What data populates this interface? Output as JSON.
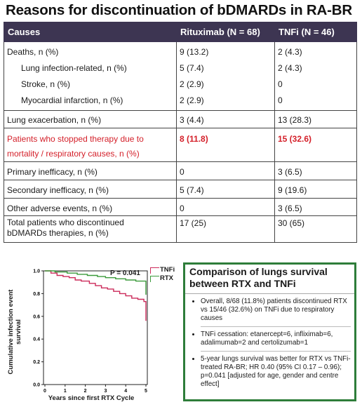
{
  "title": "Reasons for discontinuation of bDMARDs in RA-BR",
  "table": {
    "headers": [
      "Causes",
      "Rituximab (N = 68)",
      "TNFi (N = 46)"
    ],
    "rows": [
      {
        "cause": "Deaths, n (%)",
        "rtx": "9 (13.2)",
        "tnfi": "2 (4.3)"
      },
      {
        "cause": "Lung infection-related, n (%)",
        "rtx": "5 (7.4)",
        "tnfi": "2 (4.3)"
      },
      {
        "cause": "Stroke, n (%)",
        "rtx": "2 (2.9)",
        "tnfi": "0"
      },
      {
        "cause": "Myocardial infarction, n (%)",
        "rtx": "2 (2.9)",
        "tnfi": "0"
      },
      {
        "cause": "Lung exacerbation, n (%)",
        "rtx": "3 (4.4)",
        "tnfi": "13 (28.3)"
      },
      {
        "cause_line1": "Patients who stopped therapy due to",
        "cause_line2": "mortality / respiratory causes, n (%)",
        "rtx": "8 (11.8)",
        "tnfi": "15 (32.6)"
      },
      {
        "cause": "Primary inefficacy, n (%)",
        "rtx": "0",
        "tnfi": "3 (6.5)"
      },
      {
        "cause": "Secondary inefficacy, n (%)",
        "rtx": "5 (7.4)",
        "tnfi": "9 (19.6)"
      },
      {
        "cause": "Other adverse events, n (%)",
        "rtx": "0",
        "tnfi": "3 (6.5)"
      },
      {
        "cause_line1": "Total patients who discontinued",
        "cause_line2": "bDMARDs therapies, n (%)",
        "rtx": "17 (25)",
        "tnfi": "30 (65)"
      }
    ]
  },
  "highlight_color": "#d4202a",
  "header_color": "#3d3552",
  "chart_data": {
    "type": "line",
    "ylabel": "Cumulative infection event survival",
    "xlabel": "Years since first RTX Cycle",
    "annotation": "P = 0.041",
    "xlim": [
      0,
      5
    ],
    "ylim": [
      0,
      1.0
    ],
    "x_ticks": [
      "0",
      "1",
      "2",
      "3",
      "4",
      "5"
    ],
    "y_ticks": [
      "0.0",
      "0.2",
      "0.4",
      "0.6",
      "0.8",
      "1.0"
    ],
    "series": [
      {
        "name": "TNFi",
        "color": "#cc2a5a",
        "x": [
          0,
          0.3,
          0.3,
          0.6,
          0.6,
          0.9,
          0.9,
          1.2,
          1.2,
          1.5,
          1.5,
          1.8,
          1.8,
          2.2,
          2.2,
          2.5,
          2.5,
          2.8,
          2.8,
          3.1,
          3.1,
          3.4,
          3.4,
          3.7,
          3.7,
          4.0,
          4.0,
          4.3,
          4.3,
          4.6,
          4.6,
          4.9,
          4.9,
          5.0,
          5.0
        ],
        "y": [
          1.0,
          1.0,
          0.98,
          0.98,
          0.96,
          0.96,
          0.95,
          0.95,
          0.94,
          0.94,
          0.92,
          0.92,
          0.91,
          0.91,
          0.89,
          0.89,
          0.87,
          0.87,
          0.85,
          0.85,
          0.84,
          0.84,
          0.82,
          0.82,
          0.8,
          0.8,
          0.78,
          0.78,
          0.76,
          0.76,
          0.75,
          0.75,
          0.73,
          0.73,
          0.56
        ]
      },
      {
        "name": "RTX",
        "color": "#3a9a3a",
        "x": [
          0,
          0.5,
          0.5,
          1.1,
          1.1,
          1.6,
          1.6,
          2.1,
          2.1,
          2.6,
          2.6,
          3.0,
          3.0,
          3.5,
          3.5,
          4.0,
          4.0,
          4.5,
          4.5,
          5.0,
          5.0
        ],
        "y": [
          1.0,
          1.0,
          0.99,
          0.99,
          0.98,
          0.98,
          0.97,
          0.97,
          0.96,
          0.96,
          0.95,
          0.95,
          0.94,
          0.94,
          0.93,
          0.93,
          0.92,
          0.92,
          0.91,
          0.91,
          0.79
        ]
      }
    ]
  },
  "box": {
    "title": "Comparison of lungs survival between RTX and TNFi",
    "bullets": [
      "Overall, 8/68 (11.8%) patients discontinued RTX vs 15/46 (32.6%) on TNFi due to respiratory causes",
      "TNFi cessation: etanercept=6, infliximab=6, adalimumab=2 and certolizumab=1",
      "5-year lungs survival was better for RTX vs TNFi-treated RA-BR; HR 0.40 (95% CI 0.17 – 0.96); p=0.041 [adjusted for age, gender and centre effect]"
    ],
    "border_color": "#2e7d3a"
  }
}
